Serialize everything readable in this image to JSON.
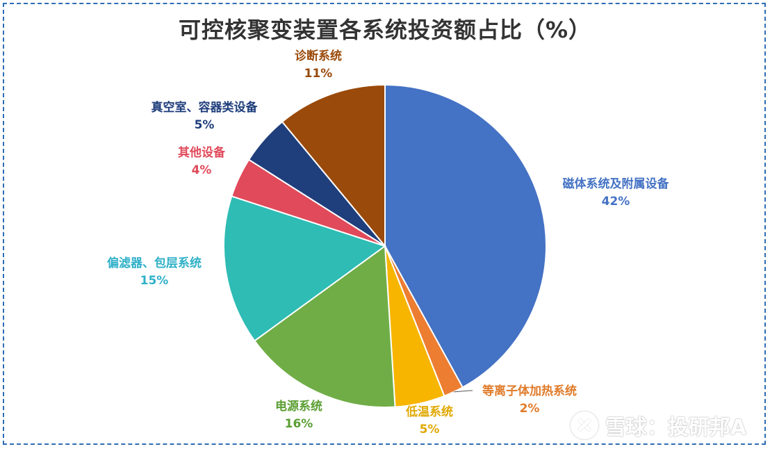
{
  "chart_data": {
    "type": "pie",
    "title": "可控核聚变装置各系统投资额占比（%）",
    "slices": [
      {
        "label": "磁体系统及附属设备",
        "value": 42,
        "display": "42%",
        "color": "#4472c4"
      },
      {
        "label": "等离子体加热系统",
        "value": 2,
        "display": "2%",
        "color": "#ed7d31"
      },
      {
        "label": "低温系统",
        "value": 5,
        "display": "5%",
        "color": "#f7b500"
      },
      {
        "label": "电源系统",
        "value": 16,
        "display": "16%",
        "color": "#70ad47"
      },
      {
        "label": "偏滤器、包层系统",
        "value": 15,
        "display": "15%",
        "color": "#2ebcb4"
      },
      {
        "label": "其他设备",
        "value": 4,
        "display": "4%",
        "color": "#e04a5a"
      },
      {
        "label": "真空室、容器类设备",
        "value": 5,
        "display": "5%",
        "color": "#1f3e7c"
      },
      {
        "label": "诊断系统",
        "value": 11,
        "display": "11%",
        "color": "#9a4a0a"
      }
    ]
  },
  "label_colors": [
    "#4472c4",
    "#e07b2a",
    "#e0a800",
    "#5a9e32",
    "#2fb0c8",
    "#e04a5a",
    "#1f3e7c",
    "#9a4a0a"
  ],
  "watermark": {
    "text": "雪球：投研邦A"
  }
}
